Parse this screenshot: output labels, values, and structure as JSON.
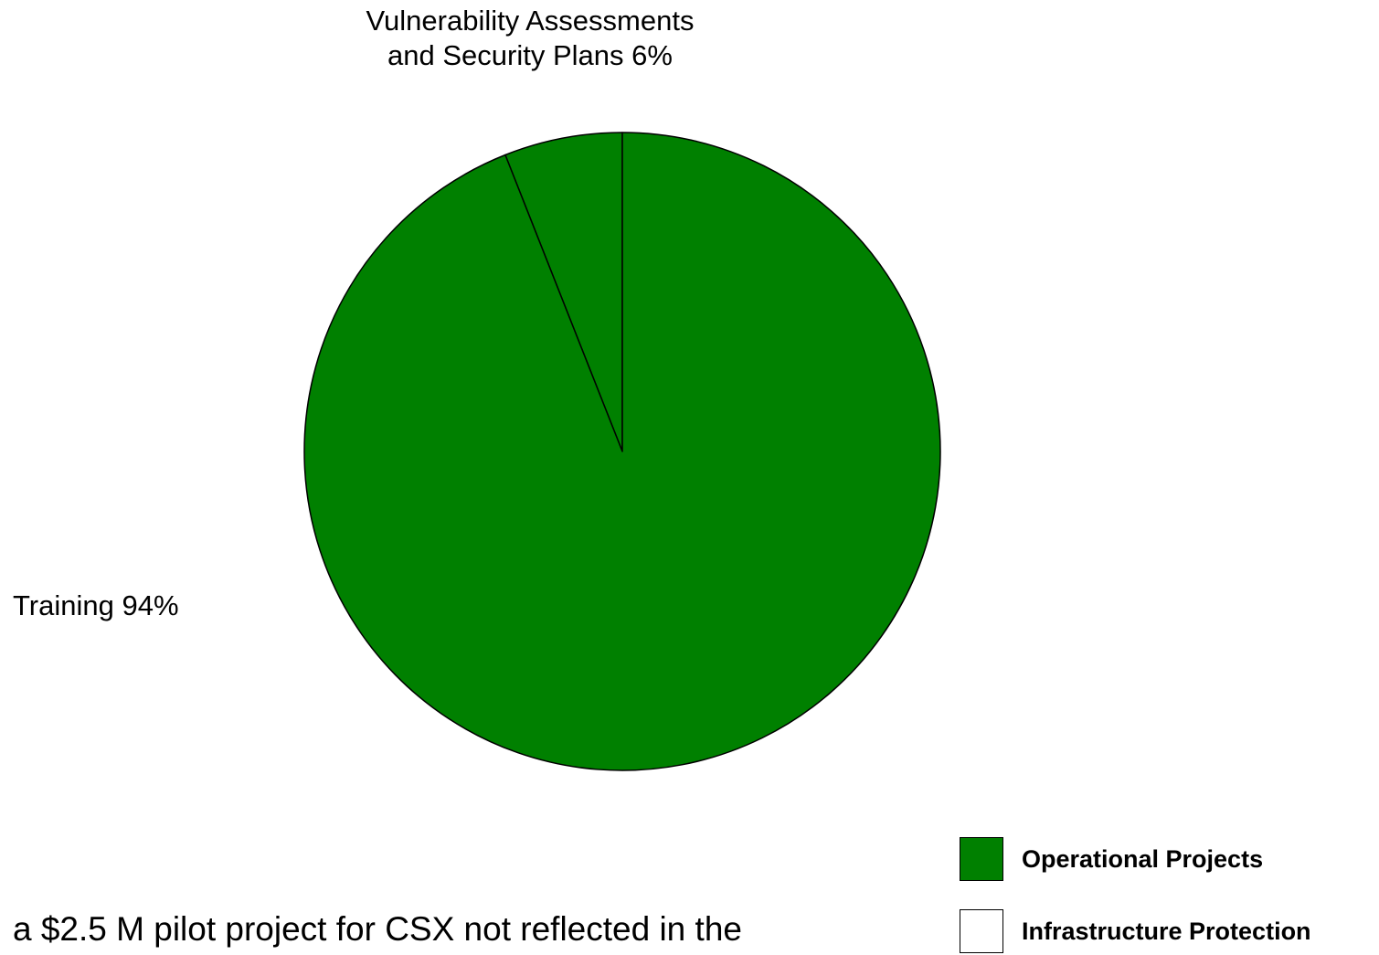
{
  "chart_data": {
    "type": "pie",
    "slices": [
      {
        "label": "Vulnerability Assessments and Security Plans",
        "value": 6,
        "label_text": "Vulnerability Assessments\nand Security Plans 6%",
        "color": "#008000"
      },
      {
        "label": "Training",
        "value": 94,
        "label_text": "Training 94%",
        "color": "#008000"
      }
    ],
    "legend": {
      "placement": "bottom-right",
      "entries": [
        {
          "label": "Operational Projects",
          "color": "#008000"
        },
        {
          "label": "Infrastructure Protection",
          "color": "#ffffff"
        }
      ]
    }
  },
  "labels": {
    "vuln_line1": "Vulnerability Assessments",
    "vuln_line2": "and Security Plans 6%",
    "training": "Training 94%"
  },
  "footnote": "a $2.5 M pilot project for CSX not reflected in the"
}
